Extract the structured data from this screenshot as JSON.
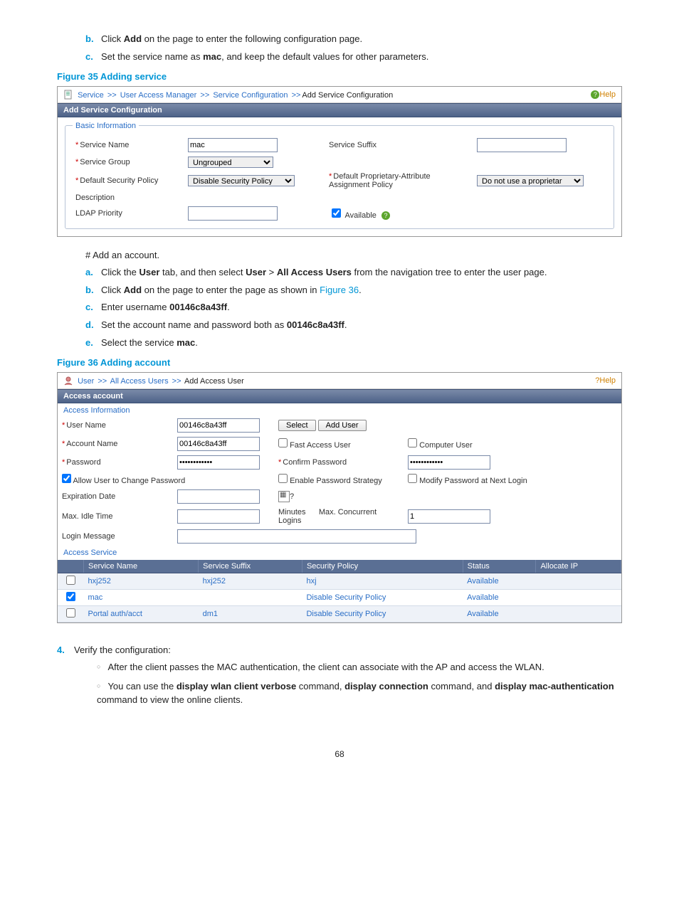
{
  "intro_steps": {
    "b": "Click <b>Add</b> on the page to enter the following configuration page.",
    "c": "Set the service name as <b>mac</b>, and keep the default values for other parameters."
  },
  "fig35": {
    "caption": "Figure 35 Adding service",
    "breadcrumb": {
      "service": "Service",
      "uam": "User Access Manager",
      "svcconf": "Service Configuration",
      "add": "Add Service Configuration"
    },
    "help": "Help",
    "title_bar": "Add Service Configuration",
    "legend": "Basic Information",
    "labels": {
      "service_name": "Service Name",
      "service_suffix": "Service Suffix",
      "service_group": "Service Group",
      "default_sec_policy": "Default Security Policy",
      "default_prop_attr": "Default Proprietary-Attribute Assignment Policy",
      "description": "Description",
      "ldap_priority": "LDAP Priority",
      "available": "Available"
    },
    "values": {
      "service_name": "mac",
      "service_group": "Ungrouped",
      "default_sec_policy": "Disable Security Policy",
      "default_prop_attr": "Do not use a proprietar"
    }
  },
  "hash_line": "# Add an account.",
  "account_steps": {
    "a": "Click the <b>User</b> tab, and then select <b>User</b> &gt; <b>All Access Users</b> from the navigation tree to enter the user page.",
    "b": "Click <b>Add</b> on the page to enter the page as shown in <span class=\"link-inline\">Figure 36</span>.",
    "c": "Enter username <b>00146c8a43ff</b>.",
    "d": "Set the account name and password both as <b>00146c8a43ff</b>.",
    "e": "Select the service <b>mac</b>."
  },
  "fig36": {
    "caption": "Figure 36 Adding account",
    "breadcrumb": {
      "user": "User",
      "all": "All Access Users",
      "add": "Add Access User"
    },
    "help": "Help",
    "title_bar": "Access account",
    "section_info": "Access Information",
    "section_service": "Access Service",
    "labels": {
      "user_name": "User Name",
      "account_name": "Account Name",
      "password": "Password",
      "confirm_password": "Confirm Password",
      "fast_access": "Fast Access User",
      "computer_user": "Computer User",
      "allow_change": "Allow User to Change Password",
      "enable_strategy": "Enable Password Strategy",
      "modify_next": "Modify Password at Next Login",
      "expiration": "Expiration Date",
      "max_idle": "Max. Idle Time",
      "minutes": "Minutes",
      "max_concurrent": "Max. Concurrent Logins",
      "login_message": "Login Message",
      "select": "Select",
      "add_user": "Add User"
    },
    "values": {
      "user_name": "00146c8a43ff",
      "account_name": "00146c8a43ff",
      "password": "••••••••••••",
      "confirm_password": "••••••••••••",
      "max_concurrent": "1"
    },
    "grid": {
      "headers": {
        "service_name": "Service Name",
        "service_suffix": "Service Suffix",
        "security_policy": "Security Policy",
        "status": "Status",
        "allocate_ip": "Allocate IP"
      },
      "rows": [
        {
          "checked": false,
          "name": "hxj252",
          "suffix": "hxj252",
          "policy": "hxj",
          "status": "Available",
          "ip": ""
        },
        {
          "checked": true,
          "name": "mac",
          "suffix": "",
          "policy": "Disable Security Policy",
          "status": "Available",
          "ip": ""
        },
        {
          "checked": false,
          "name": "Portal auth/acct",
          "suffix": "dm1",
          "policy": "Disable Security Policy",
          "status": "Available",
          "ip": ""
        }
      ]
    }
  },
  "verify": {
    "step_num": "4.",
    "step_text": "Verify the configuration:",
    "b1": "After the client passes the MAC authentication, the client can associate with the AP and access the WLAN.",
    "b2": "You can use the <b>display wlan client verbose</b> command, <b>display connection</b> command, and <b>display mac-authentication</b> command to view the online clients."
  },
  "page_number": "68"
}
